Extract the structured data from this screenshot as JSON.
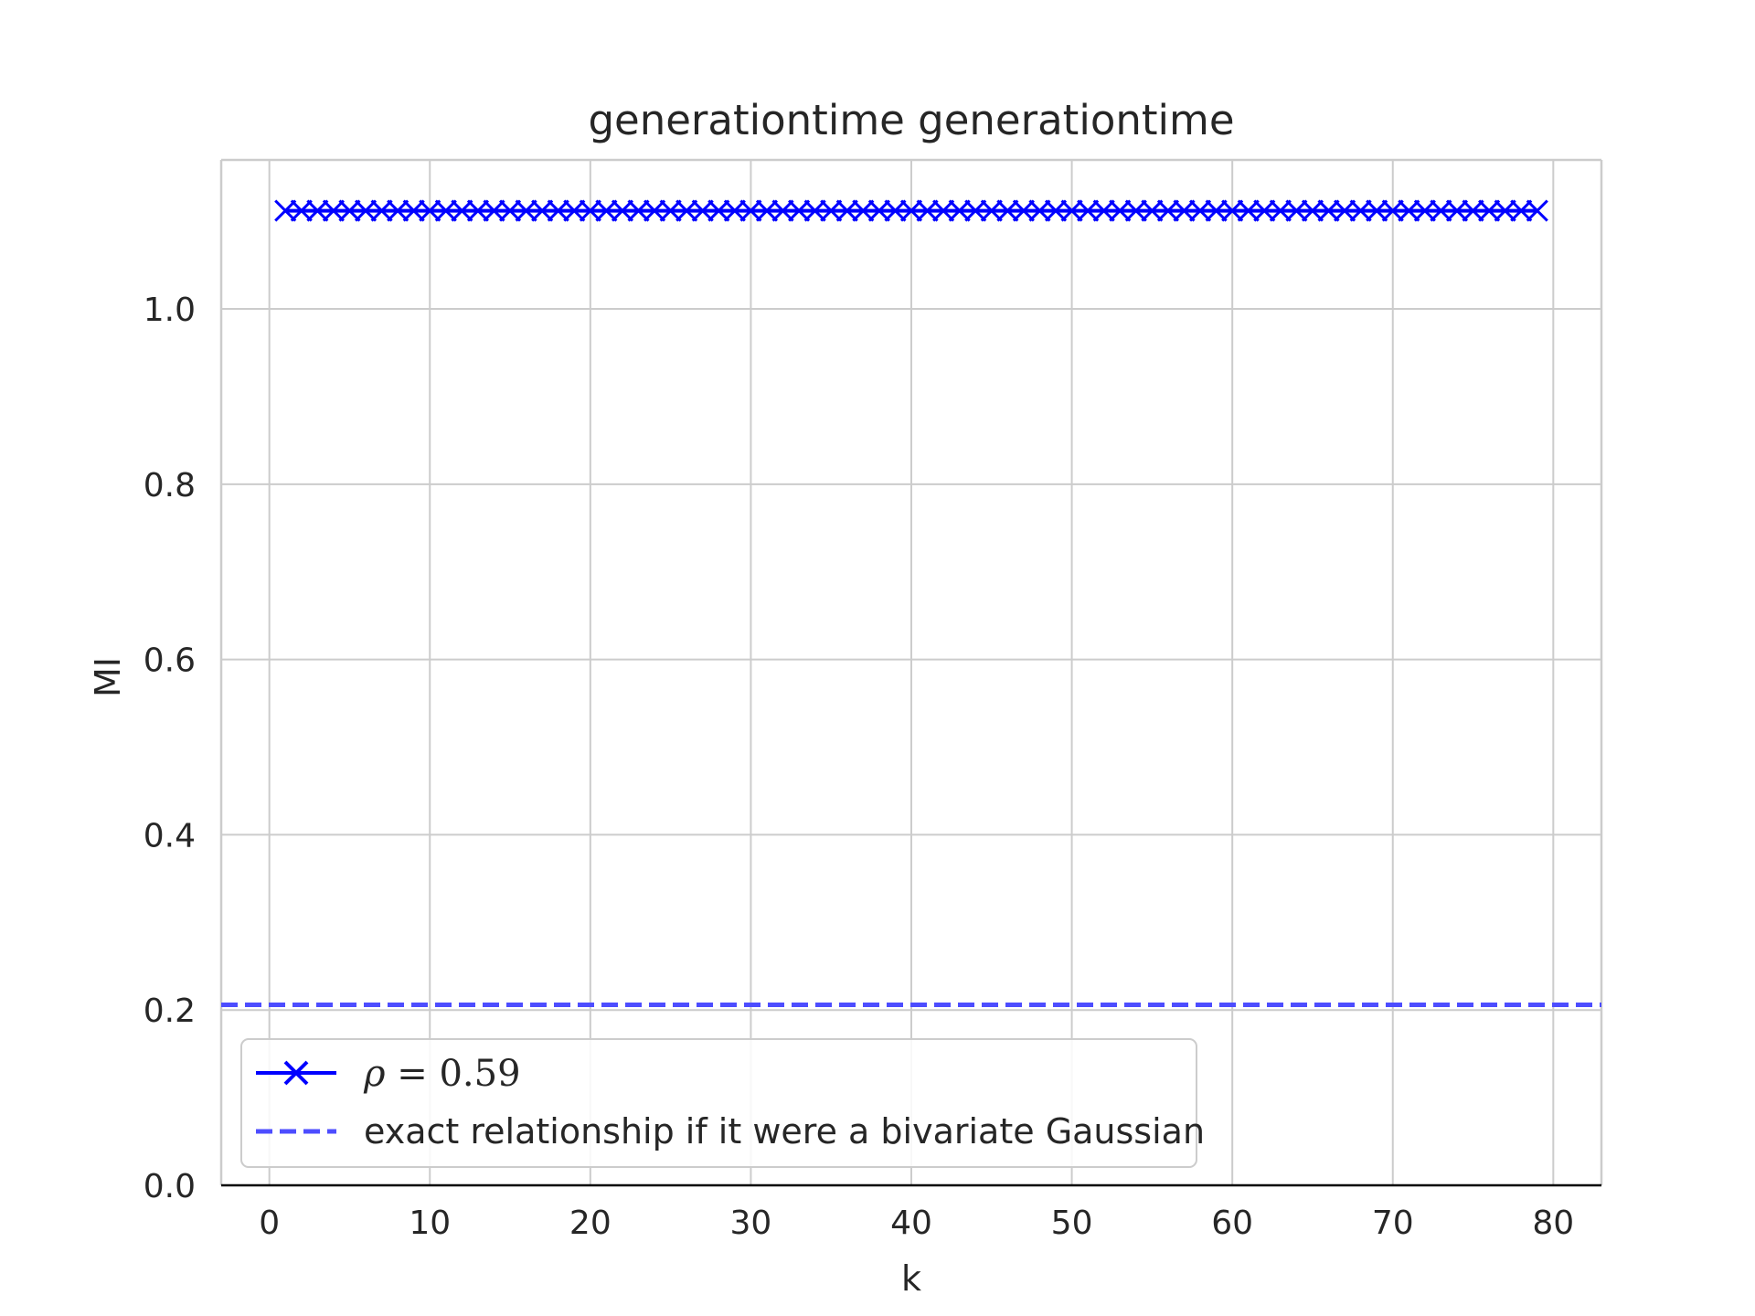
{
  "chart_data": {
    "type": "line",
    "title": "generationtime generationtime",
    "xlabel": "k",
    "ylabel": "MI",
    "xlim": [
      -3,
      83
    ],
    "ylim": [
      0.0,
      1.17
    ],
    "xticks": [
      0,
      10,
      20,
      30,
      40,
      50,
      60,
      70,
      80
    ],
    "xtick_labels": [
      "0",
      "10",
      "20",
      "30",
      "40",
      "50",
      "60",
      "70",
      "80"
    ],
    "yticks": [
      0.0,
      0.2,
      0.4,
      0.6,
      0.8,
      1.0
    ],
    "ytick_labels": [
      "0.0",
      "0.2",
      "0.4",
      "0.6",
      "0.8",
      "1.0"
    ],
    "grid": true,
    "legend_position": "lower-left",
    "series": [
      {
        "name": "ρ = 0.59",
        "legend_var": "ρ",
        "legend_rest": " = 0.59",
        "style": "solid",
        "marker": "x",
        "color": "#0000ff",
        "x_start": 1,
        "x_end": 79,
        "y": 1.112
      },
      {
        "name": "exact relationship if it were a bivariate Gaussian",
        "style": "dashed",
        "color": "#4d4dff",
        "y": 0.206
      }
    ]
  }
}
